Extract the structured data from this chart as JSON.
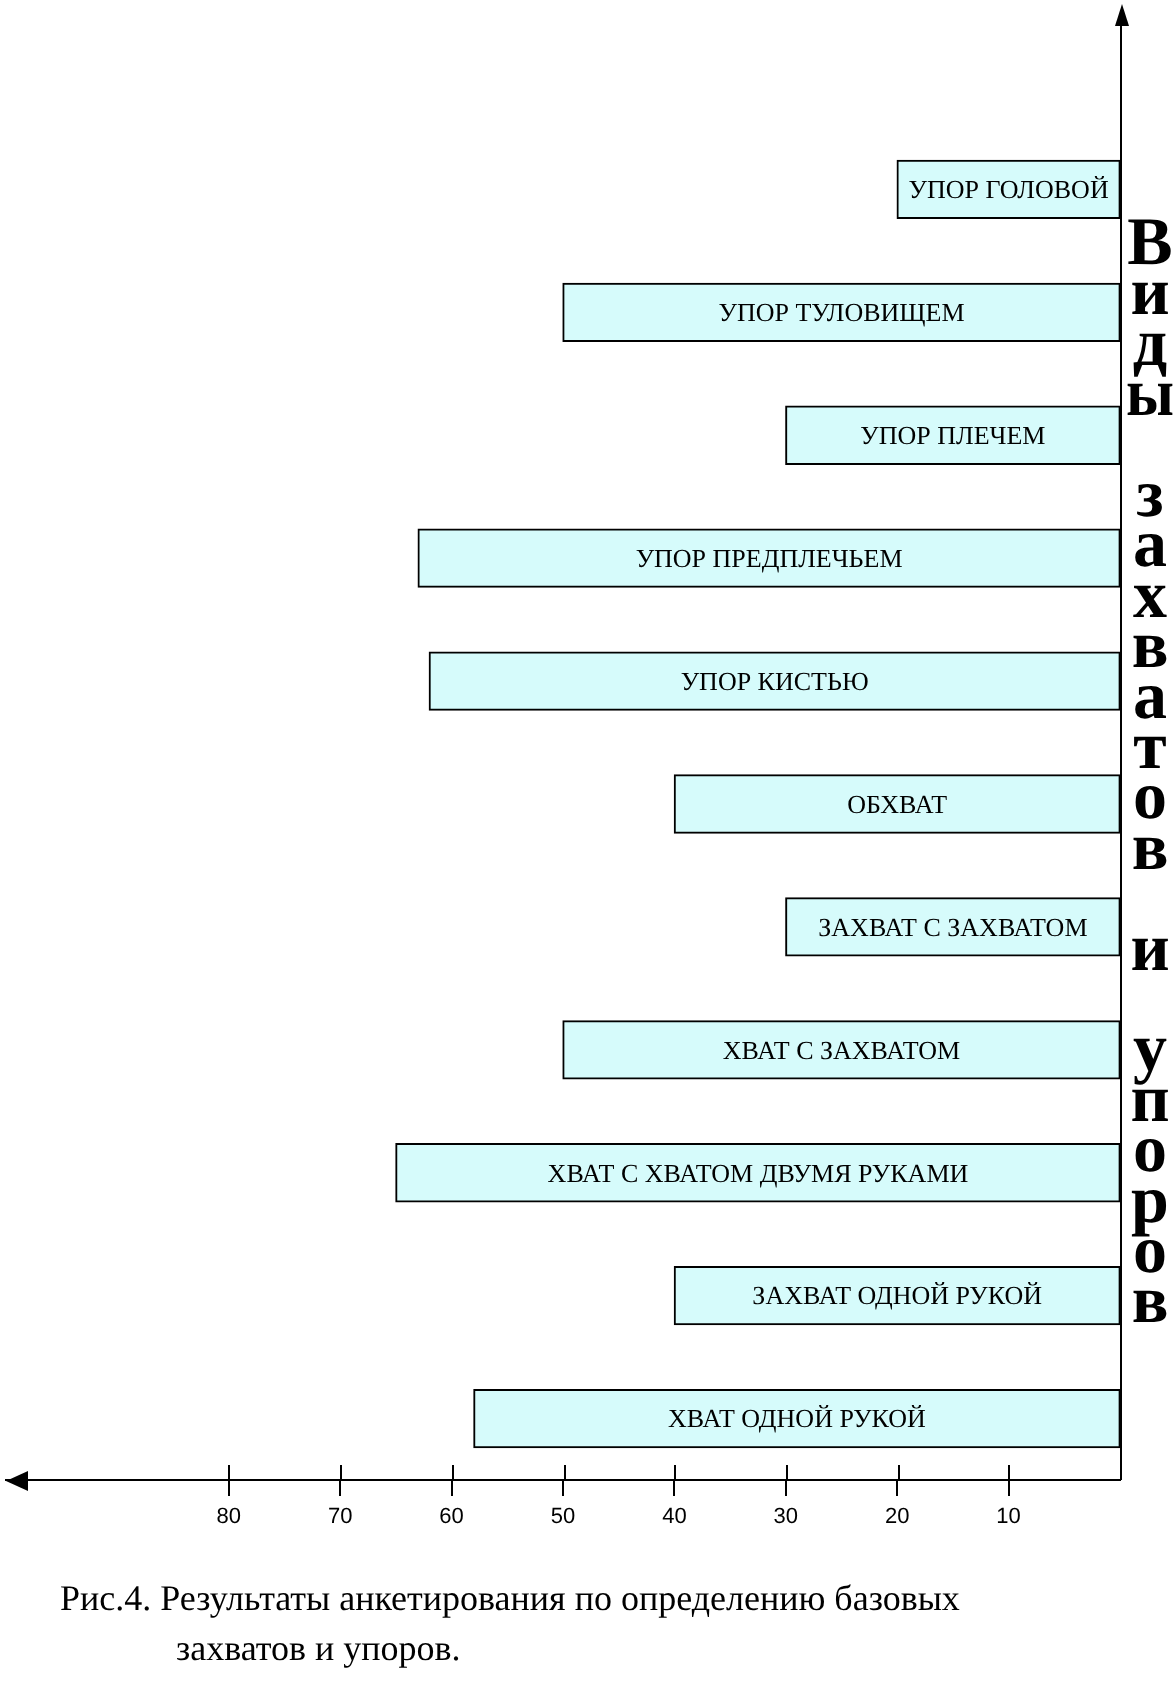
{
  "chart_data": {
    "type": "bar",
    "orientation": "horizontal",
    "ylabel": "Виды захватов и упоров",
    "annotations": [
      "Рис.4. Результаты анкетирования по определению базовых захватов и упоров."
    ],
    "categories": [
      "УПОР ГОЛОВОЙ",
      "УПОР ТУЛОВИЩЕМ",
      "УПОР ПЛЕЧЕМ",
      "УПОР ПРЕДПЛЕЧЬЕМ",
      "УПОР КИСТЬЮ",
      "ОБХВАТ",
      "ЗАХВАТ С ЗАХВАТОМ",
      "ХВАТ С ЗАХВАТОМ",
      "ХВАТ С ХВАТОМ ДВУМЯ РУКАМИ",
      "ЗАХВАТ ОДНОЙ РУКОЙ",
      "ХВАТ ОДНОЙ РУКОЙ"
    ],
    "values": [
      20,
      50,
      30,
      63,
      62,
      40,
      30,
      50,
      65,
      40,
      58
    ],
    "color": "#d6fbfb",
    "xlim": [
      100,
      0
    ],
    "xticks": [
      80,
      70,
      60,
      50,
      40,
      30,
      20,
      10
    ]
  }
}
